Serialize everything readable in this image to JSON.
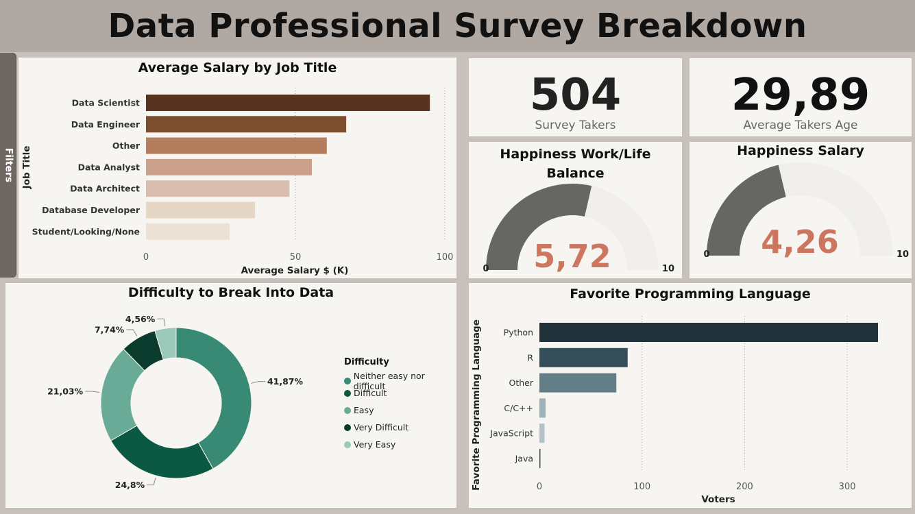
{
  "header": {
    "title": "Data Professional Survey Breakdown"
  },
  "filters": {
    "label": "Filters"
  },
  "kpis": {
    "survey_takers": {
      "value": "504",
      "label": "Survey Takers"
    },
    "avg_age": {
      "value": "29,89",
      "label": "Average Takers Age"
    }
  },
  "gauges": {
    "work_life": {
      "title_line1": "Happiness Work/Life",
      "title_line2": "Balance",
      "value_label": "5,72",
      "min_label": "0",
      "max_label": "10"
    },
    "salary": {
      "title": "Happiness Salary",
      "value_label": "4,26",
      "min_label": "0",
      "max_label": "10"
    }
  },
  "donut_legend": {
    "title": "Difficulty",
    "items": [
      "Neither easy nor difficult",
      "Difficult",
      "Easy",
      "Very Difficult",
      "Very Easy"
    ]
  },
  "colors": {
    "gauge_fill": "#666664",
    "gauge_track": "#f0efed",
    "gauge_value": "#cd765f",
    "salary_bars": [
      "#56321f",
      "#7d4d30",
      "#b47d5e",
      "#cca18b",
      "#d9bdae",
      "#e6d6c5",
      "#ede1d6"
    ],
    "donut": [
      "#398a74",
      "#0b5943",
      "#6aab98",
      "#0b3b2d",
      "#9bc9ba"
    ],
    "lang_bars": [
      "#22323a",
      "#344e5a",
      "#627e87",
      "#9db1b8",
      "#b3c3c8",
      "#344e5a"
    ]
  },
  "chart_data": [
    {
      "type": "bar",
      "orientation": "horizontal",
      "title": "Average Salary by Job Title",
      "xlabel": "Average Salary $ (K)",
      "ylabel": "Job Title",
      "categories": [
        "Data Scientist",
        "Data Engineer",
        "Other",
        "Data Analyst",
        "Data Architect",
        "Database Developer",
        "Student/Looking/None"
      ],
      "values": [
        95,
        67,
        60.5,
        55.5,
        48,
        36.5,
        28
      ],
      "xlim": [
        0,
        100
      ],
      "xticks": [
        0,
        50,
        100
      ],
      "grid": true
    },
    {
      "type": "pie",
      "variant": "donut",
      "title": "Difficulty to Break Into Data",
      "categories": [
        "Neither easy nor difficult",
        "Difficult",
        "Easy",
        "Very Difficult",
        "Very Easy"
      ],
      "values": [
        41.87,
        24.8,
        21.03,
        7.74,
        4.56
      ],
      "labels": [
        "41,87%",
        "24,8%",
        "21,03%",
        "7,74%",
        "4,56%"
      ],
      "legend": "right"
    },
    {
      "type": "bar",
      "orientation": "horizontal",
      "title": "Favorite Programming Language",
      "xlabel": "Voters",
      "ylabel": "Favorite Programming Language",
      "categories": [
        "Python",
        "R",
        "Other",
        "C/C++",
        "JavaScript",
        "Java"
      ],
      "values": [
        330,
        86,
        75,
        6,
        5,
        1
      ],
      "xlim": [
        0,
        330
      ],
      "xticks": [
        0,
        100,
        200,
        300
      ],
      "grid": true
    },
    {
      "type": "gauge",
      "title": "Happiness Work/Life Balance",
      "value": 5.72,
      "min": 0,
      "max": 10
    },
    {
      "type": "gauge",
      "title": "Happiness Salary",
      "value": 4.26,
      "min": 0,
      "max": 10
    }
  ]
}
